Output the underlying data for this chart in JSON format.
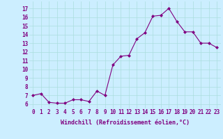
{
  "x": [
    0,
    1,
    2,
    3,
    4,
    5,
    6,
    7,
    8,
    9,
    10,
    11,
    12,
    13,
    14,
    15,
    16,
    17,
    18,
    19,
    20,
    21,
    22,
    23
  ],
  "y": [
    7.0,
    7.2,
    6.2,
    6.1,
    6.1,
    6.5,
    6.5,
    6.3,
    7.5,
    7.0,
    10.5,
    11.5,
    11.6,
    13.5,
    14.2,
    16.1,
    16.2,
    17.0,
    15.5,
    14.3,
    14.3,
    13.0,
    13.0,
    12.5
  ],
  "line_color": "#800080",
  "marker": "D",
  "marker_size": 2,
  "bg_color": "#cceeff",
  "grid_color": "#aadddd",
  "xlabel": "Windchill (Refroidissement éolien,°C)",
  "yticks": [
    6,
    7,
    8,
    9,
    10,
    11,
    12,
    13,
    14,
    15,
    16,
    17
  ],
  "xlim": [
    -0.5,
    23.5
  ],
  "ylim": [
    5.5,
    17.8
  ],
  "xlabel_fontsize": 6,
  "tick_fontsize": 5.5
}
